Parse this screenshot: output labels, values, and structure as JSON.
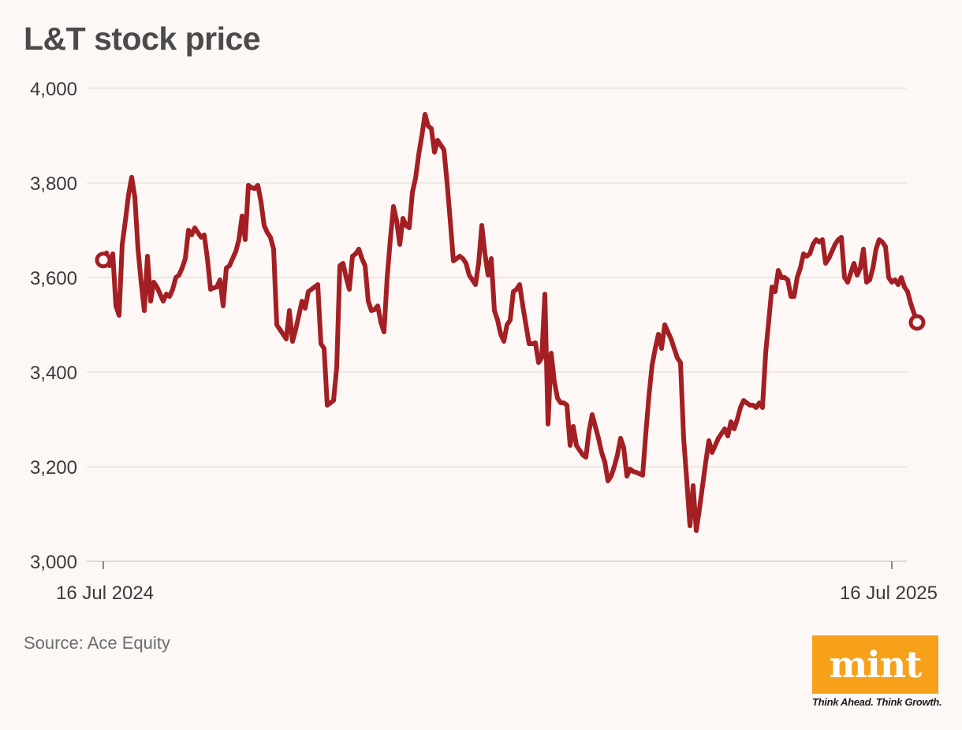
{
  "chart_data": {
    "type": "line",
    "title": "L&T stock price",
    "source": "Source: Ace Equity",
    "xlabel": "",
    "ylabel": "",
    "ylim": [
      3000,
      4000
    ],
    "yticks": [
      3000,
      3200,
      3400,
      3600,
      3800,
      4000
    ],
    "ytick_labels": [
      "3,000",
      "3,200",
      "3,400",
      "3,600",
      "3,800",
      "4,000"
    ],
    "xtick_labels": [
      "16 Jul 2024",
      "16 Jul 2025"
    ],
    "x_range": [
      0,
      250
    ],
    "grid": true,
    "line_color": "#a31f23",
    "series": [
      {
        "name": "L&T",
        "values": [
          3637,
          3652,
          3625,
          3650,
          3540,
          3520,
          3670,
          3720,
          3775,
          3812,
          3770,
          3660,
          3590,
          3530,
          3645,
          3550,
          3590,
          3580,
          3565,
          3550,
          3565,
          3560,
          3575,
          3600,
          3605,
          3620,
          3640,
          3700,
          3690,
          3705,
          3695,
          3685,
          3690,
          3640,
          3575,
          3578,
          3580,
          3595,
          3540,
          3620,
          3625,
          3640,
          3655,
          3680,
          3730,
          3680,
          3795,
          3790,
          3788,
          3795,
          3760,
          3710,
          3695,
          3685,
          3660,
          3500,
          3490,
          3480,
          3470,
          3530,
          3465,
          3490,
          3520,
          3550,
          3535,
          3570,
          3575,
          3580,
          3585,
          3460,
          3450,
          3330,
          3335,
          3340,
          3410,
          3625,
          3630,
          3600,
          3575,
          3645,
          3650,
          3660,
          3640,
          3625,
          3550,
          3530,
          3532,
          3540,
          3505,
          3485,
          3600,
          3680,
          3750,
          3720,
          3670,
          3725,
          3710,
          3705,
          3780,
          3810,
          3860,
          3900,
          3945,
          3920,
          3915,
          3865,
          3890,
          3880,
          3870,
          3800,
          3720,
          3635,
          3640,
          3645,
          3640,
          3630,
          3605,
          3595,
          3585,
          3630,
          3710,
          3650,
          3605,
          3640,
          3530,
          3510,
          3480,
          3465,
          3500,
          3510,
          3570,
          3575,
          3585,
          3540,
          3500,
          3460,
          3460,
          3462,
          3420,
          3430,
          3565,
          3290,
          3440,
          3380,
          3345,
          3335,
          3335,
          3330,
          3245,
          3285,
          3245,
          3235,
          3225,
          3220,
          3275,
          3310,
          3285,
          3260,
          3230,
          3210,
          3170,
          3180,
          3200,
          3225,
          3260,
          3240,
          3180,
          3195,
          3190,
          3188,
          3185,
          3182,
          3270,
          3350,
          3415,
          3450,
          3480,
          3450,
          3500,
          3485,
          3470,
          3450,
          3430,
          3420,
          3260,
          3170,
          3075,
          3160,
          3065,
          3110,
          3160,
          3210,
          3255,
          3230,
          3245,
          3260,
          3270,
          3280,
          3265,
          3295,
          3280,
          3300,
          3325,
          3340,
          3335,
          3330,
          3330,
          3325,
          3335,
          3325,
          3440,
          3510,
          3580,
          3570,
          3615,
          3600,
          3600,
          3595,
          3560,
          3560,
          3600,
          3620,
          3650,
          3645,
          3650,
          3670,
          3680,
          3675,
          3680,
          3630,
          3640,
          3655,
          3670,
          3680,
          3685,
          3600,
          3590,
          3610,
          3630,
          3605,
          3620,
          3660,
          3590,
          3595,
          3620,
          3660,
          3680,
          3675,
          3665,
          3600,
          3590,
          3595,
          3585,
          3600,
          3580,
          3570,
          3545,
          3525,
          3505
        ]
      }
    ]
  },
  "branding": {
    "logo_text": "mint",
    "tagline": "Think Ahead. Think Growth.",
    "logo_color": "#f7a11a"
  }
}
